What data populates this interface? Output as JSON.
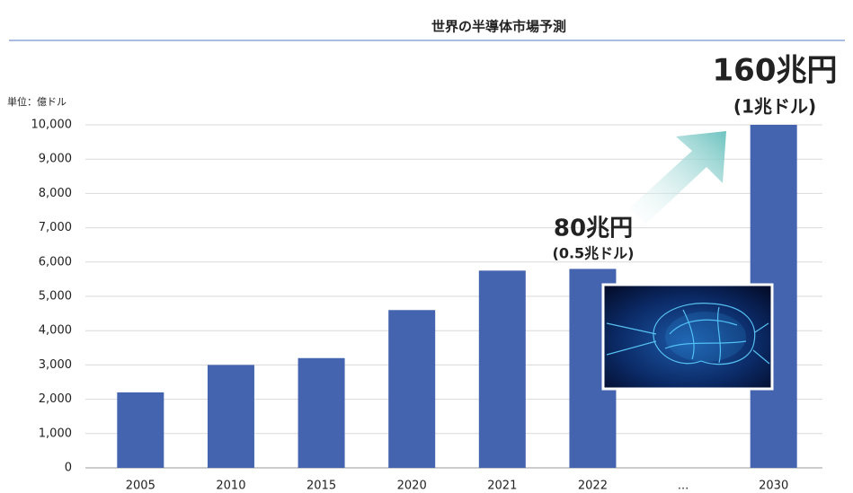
{
  "chart_data": {
    "type": "bar",
    "title": "世界の半導体市場予測",
    "unit_label": "単位：億ドル",
    "categories": [
      "2005",
      "2010",
      "2015",
      "2020",
      "2021",
      "2022",
      "...",
      "2030"
    ],
    "values": [
      2200,
      3000,
      3200,
      4600,
      5750,
      5800,
      null,
      10000
    ],
    "color": "#4564b0",
    "ylim": [
      0,
      10000
    ],
    "yticks": [
      0,
      {
        "value": 1000,
        "label": "1,000"
      },
      {
        "value": 2000,
        "label": "2,000"
      },
      {
        "value": 3000,
        "label": "3,000"
      },
      {
        "value": 4000,
        "label": "4,000"
      },
      {
        "value": 5000,
        "label": "5,000"
      },
      {
        "value": 6000,
        "label": "6,000"
      },
      {
        "value": 7000,
        "label": "7,000"
      },
      {
        "value": 8000,
        "label": "8,000"
      },
      {
        "value": 9000,
        "label": "9,000"
      },
      {
        "value": 10000,
        "label": "10,000"
      }
    ],
    "grid": true,
    "annotations": [
      "160兆円",
      "(1兆ドル)",
      "80兆円",
      "(0.5兆ドル)"
    ]
  }
}
